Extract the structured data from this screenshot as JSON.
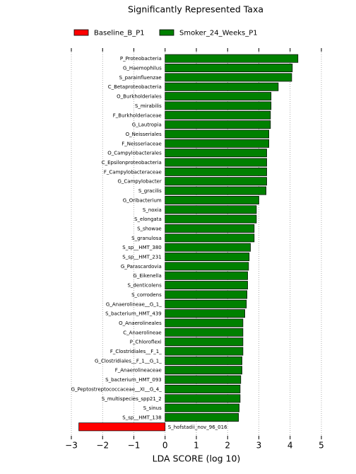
{
  "chart_data": {
    "type": "barh",
    "title": "Significantly Represented Taxa",
    "xlabel": "LDA SCORE (log 10)",
    "categories": [
      "P_Proteobacteria",
      "G_Haemophilus",
      "S_parainfluenzae",
      "C_Betaproteobacteria",
      "O_Burkholderiales",
      "S_mirabilis",
      "F_Burkholderiaceae",
      "G_Lautropia",
      "O_Neisseriales",
      "F_Neisseriaceae",
      "O_Campylobacterales",
      "C_Epsilonproteobacteria",
      "F_Campylobacteraceae",
      "G_Campylobacter",
      "S_gracilis",
      "G_Oribacterium",
      "S_noxia",
      "S_elongata",
      "S_showae",
      "S_granulosa",
      "S_sp__HMT_380",
      "S_sp__HMT_231",
      "G_Parascardovia",
      "G_Eikenella",
      "S_denticolens",
      "S_corrodens",
      "G_Anaerolineae__G_1_",
      "S_bacterium_HMT_439",
      "O_Anaerolineales",
      "C_Anaerolineae",
      "P_Chloroflexi",
      "F_Clostridiales__F_1_",
      "G_Clostridiales__F_1__G_1_",
      "F_Anaerolineaceae",
      "S_bacterium_HMT_093",
      "G_Peptostreptococcaceae__XI__G_4_",
      "S_multispecies_spp21_2",
      "S_sinus",
      "S_sp__HMT_138",
      "S_hofstadii_nov_96_016"
    ],
    "series": [
      {
        "name": "Baseline_B_P1",
        "color": "#ff0000",
        "values": [
          null,
          null,
          null,
          null,
          null,
          null,
          null,
          null,
          null,
          null,
          null,
          null,
          null,
          null,
          null,
          null,
          null,
          null,
          null,
          null,
          null,
          null,
          null,
          null,
          null,
          null,
          null,
          null,
          null,
          null,
          null,
          null,
          null,
          null,
          null,
          null,
          null,
          null,
          null,
          -2.76
        ]
      },
      {
        "name": "Smoker_24_Weeks_P1",
        "color": "#008000",
        "values": [
          4.25,
          4.07,
          4.05,
          3.62,
          3.39,
          3.39,
          3.37,
          3.37,
          3.32,
          3.32,
          3.25,
          3.25,
          3.25,
          3.25,
          3.23,
          3.0,
          2.92,
          2.92,
          2.85,
          2.85,
          2.73,
          2.69,
          2.67,
          2.64,
          2.64,
          2.62,
          2.6,
          2.55,
          2.49,
          2.49,
          2.49,
          2.49,
          2.46,
          2.46,
          2.42,
          2.4,
          2.4,
          2.37,
          2.35,
          null
        ]
      }
    ],
    "xlim": [
      -3,
      5
    ],
    "xticks": [
      {
        "value": -3,
        "label": "−3"
      },
      {
        "value": -2,
        "label": "−2"
      },
      {
        "value": -1,
        "label": "−1"
      },
      0,
      1,
      2,
      3,
      4,
      5
    ],
    "grid": true,
    "legend": "top"
  }
}
